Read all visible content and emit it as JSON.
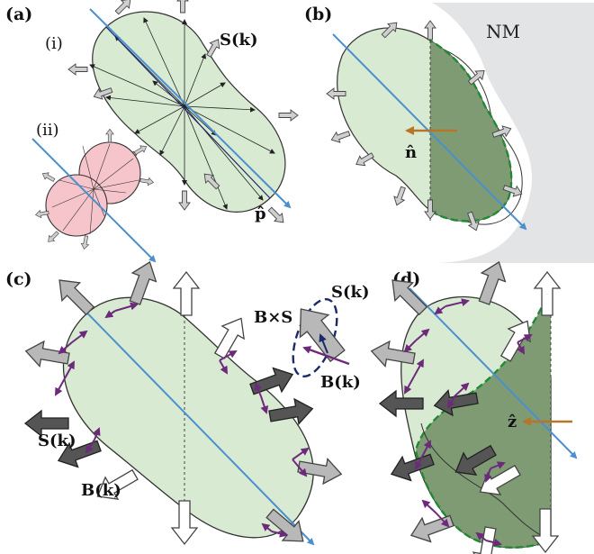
{
  "panels": {
    "a": {
      "label": "(a)",
      "sub_i": "(i)",
      "sub_ii": "(ii)",
      "spin_label": "S(k)",
      "p_label": "p̂"
    },
    "b": {
      "label": "(b)",
      "nm_label": "NM",
      "n_label": "n̂"
    },
    "c": {
      "label": "(c)",
      "legend_S": "S(k)",
      "legend_BxS": "B×S",
      "legend_B": "B(k)",
      "side_S": "S(k)",
      "side_B": "B(k)"
    },
    "d": {
      "label": "(d)",
      "z_label": "ẑ"
    }
  },
  "colors": {
    "light_green": "#d9ead3",
    "dark_green": "#7f9b74",
    "pink": "#f6c4cb",
    "axis_blue": "#4a8fd0",
    "arrow_gray": "#b8b8b8",
    "arrow_dark": "#555555",
    "purple": "#6d2a7a",
    "orange": "#b5762a",
    "dash_green": "#1e8a32",
    "nm_gray": "#e3e4e6"
  }
}
